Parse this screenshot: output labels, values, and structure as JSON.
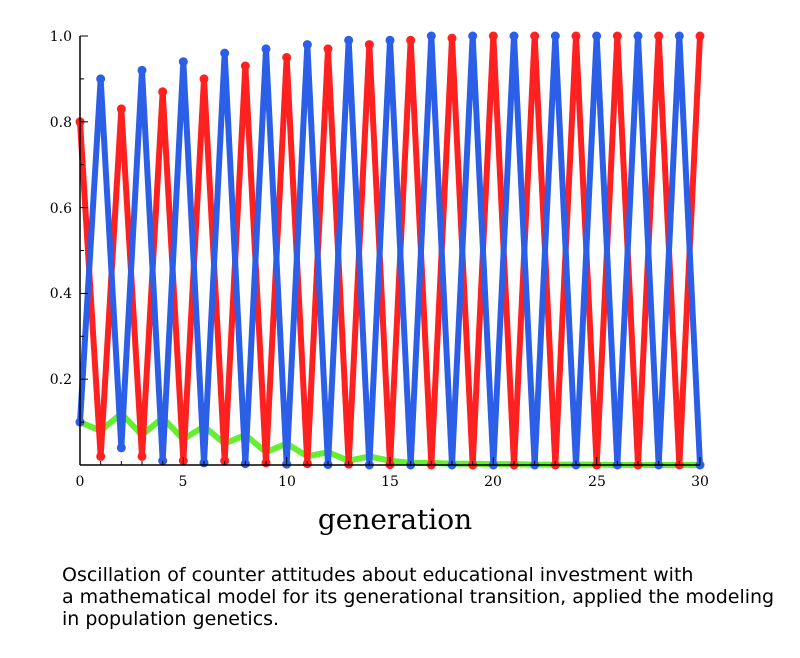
{
  "chart_data": {
    "type": "line",
    "xlabel": "generation",
    "ylabel": "",
    "xlim": [
      0,
      30
    ],
    "ylim": [
      0,
      1
    ],
    "xticks": [
      "0",
      "5",
      "10",
      "15",
      "20",
      "25",
      "30"
    ],
    "yticks": [
      "0.2",
      "0.4",
      "0.6",
      "0.8",
      "1.0"
    ],
    "x": [
      0,
      1,
      2,
      3,
      4,
      5,
      6,
      7,
      8,
      9,
      10,
      11,
      12,
      13,
      14,
      15,
      16,
      17,
      18,
      19,
      20,
      21,
      22,
      23,
      24,
      25,
      26,
      27,
      28,
      29,
      30
    ],
    "series": [
      {
        "color": "#ff2020",
        "markers": true,
        "values": [
          0.8,
          0.02,
          0.83,
          0.02,
          0.87,
          0.01,
          0.9,
          0.01,
          0.93,
          0.005,
          0.95,
          0.003,
          0.97,
          0.002,
          0.98,
          0.001,
          0.99,
          0.0,
          0.995,
          0.0,
          1.0,
          0.0,
          1.0,
          0.0,
          1.0,
          0.0,
          1.0,
          0.0,
          1.0,
          0.0,
          1.0
        ]
      },
      {
        "color": "#2b5fe8",
        "markers": true,
        "values": [
          0.1,
          0.9,
          0.04,
          0.92,
          0.01,
          0.94,
          0.005,
          0.96,
          0.003,
          0.97,
          0.002,
          0.98,
          0.001,
          0.99,
          0.0,
          0.99,
          0.0,
          1.0,
          0.0,
          1.0,
          0.0,
          1.0,
          0.0,
          1.0,
          0.0,
          1.0,
          0.0,
          1.0,
          0.0,
          1.0,
          0.0
        ]
      },
      {
        "color": "#66ee33",
        "markers": false,
        "values": [
          0.1,
          0.08,
          0.12,
          0.07,
          0.11,
          0.06,
          0.09,
          0.05,
          0.07,
          0.03,
          0.05,
          0.02,
          0.03,
          0.01,
          0.02,
          0.01,
          0.005,
          0.005,
          0.003,
          0.003,
          0.002,
          0.002,
          0.001,
          0.001,
          0.001,
          0.001,
          0.0,
          0.0,
          0.0,
          0.0,
          0.0
        ]
      }
    ]
  },
  "caption": {
    "line1": "Oscillation of counter attitudes about educational investment with",
    "line2": "a mathematical model for its generational transition, applied the modeling",
    "line3": "in population genetics."
  }
}
